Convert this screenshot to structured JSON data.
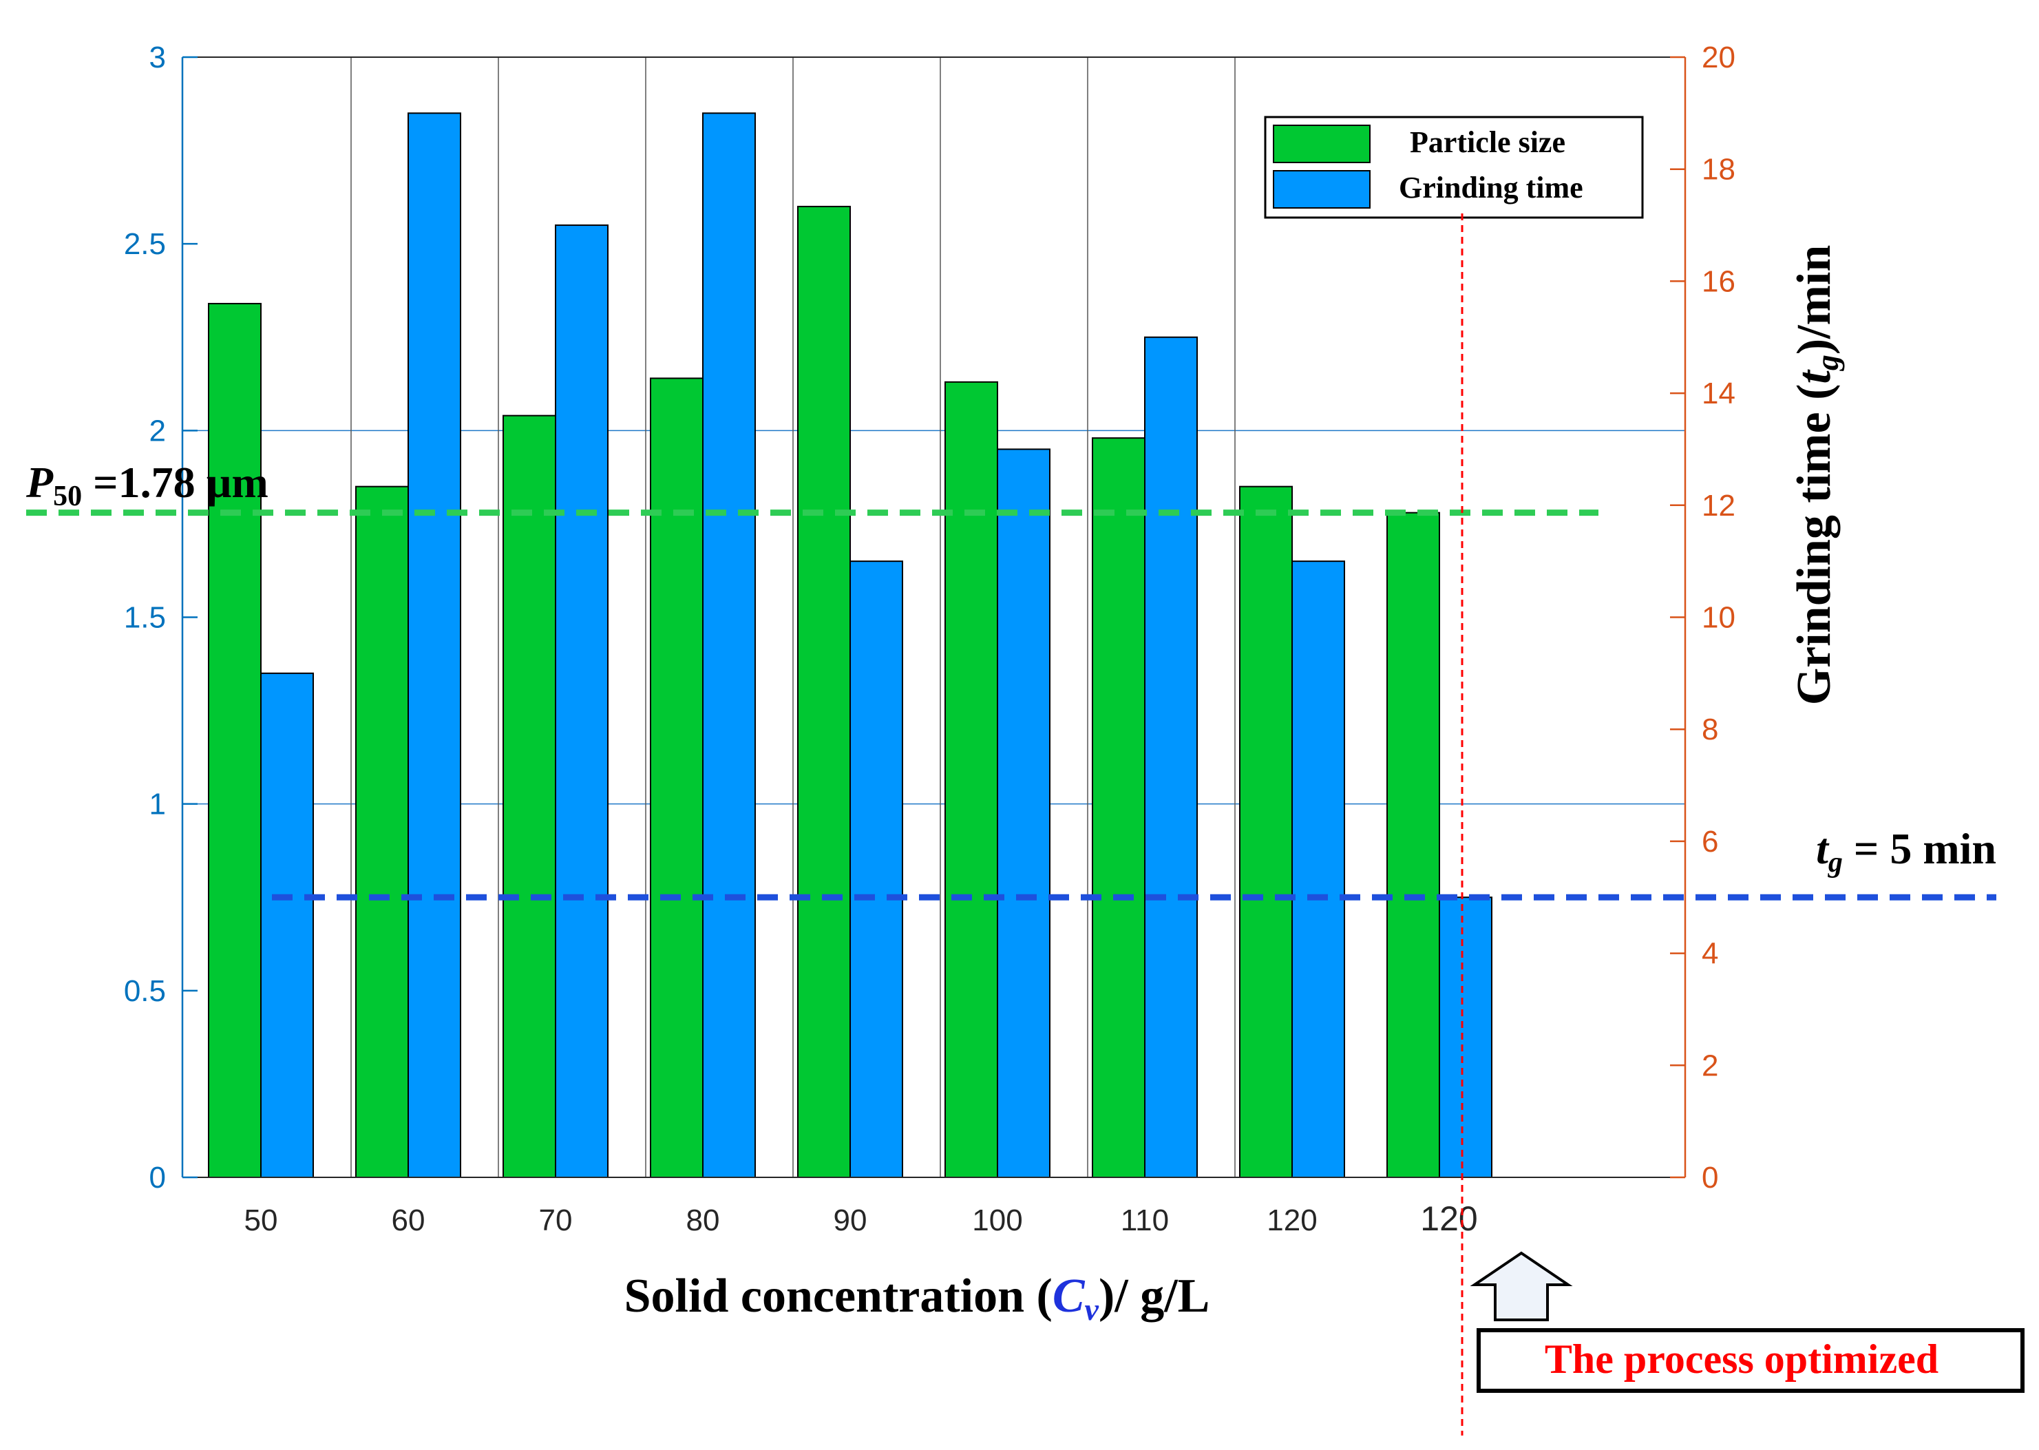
{
  "chart_data": {
    "type": "bar",
    "categories": [
      "50",
      "60",
      "70",
      "80",
      "90",
      "100",
      "110",
      "120",
      "120"
    ],
    "series": [
      {
        "name": "Particle size",
        "axis": "left",
        "color": "#00c832",
        "values": [
          2.34,
          1.85,
          2.04,
          2.14,
          2.6,
          2.13,
          1.98,
          1.85,
          1.78
        ]
      },
      {
        "name": "Grinding time",
        "axis": "right",
        "color": "#0096ff",
        "values": [
          9,
          19,
          17,
          19,
          11,
          13,
          15,
          11,
          5
        ]
      }
    ],
    "xlabel": {
      "pre": "Solid concentration (",
      "var": "C",
      "sub": "v",
      "post": ")/ g/L"
    },
    "ylabel_right": {
      "pre": "Grinding time (",
      "var": "t",
      "sub": "g",
      "post": ")/min"
    },
    "ylim_left": [
      0,
      3
    ],
    "ylim_right": [
      0,
      20
    ],
    "yticks_left": [
      "0",
      "0.5",
      "1",
      "1.5",
      "2",
      "2.5",
      "3"
    ],
    "yticks_right": [
      "0",
      "2",
      "4",
      "6",
      "8",
      "10",
      "12",
      "14",
      "16",
      "18",
      "20"
    ],
    "left_axis_color": "#0072bd",
    "right_axis_color": "#d95319",
    "legend_position": "top-right",
    "reference_lines": [
      {
        "axis": "left",
        "value": 1.78,
        "color": "#2ecc55",
        "label": {
          "var": "P",
          "sub": "50",
          "post": " =1.78 µm"
        }
      },
      {
        "axis": "right",
        "value": 5,
        "color": "#1e50dc",
        "label": {
          "var": "t",
          "sub": "g",
          "post": " = 5 min"
        }
      }
    ],
    "annotation": {
      "text": "The process optimized",
      "color": "#ff0000"
    }
  }
}
